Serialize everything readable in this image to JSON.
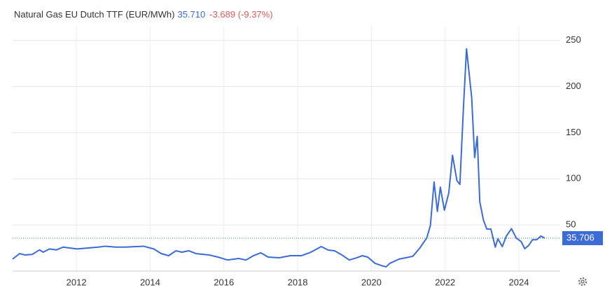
{
  "chart_data": {
    "type": "line",
    "title": "Natural Gas EU Dutch TTF (EUR/MWh)",
    "price": "35.710",
    "change": "-3.689 (-9.37%)",
    "series": [
      {
        "name": "Natural Gas EU Dutch TTF",
        "color": "#3b6bd6",
        "x": [
          2010.27,
          2010.46,
          2010.6,
          2010.8,
          2011.0,
          2011.1,
          2011.27,
          2011.46,
          2011.64,
          2011.83,
          2012.02,
          2012.3,
          2012.6,
          2012.78,
          2013.06,
          2013.34,
          2013.63,
          2013.82,
          2014.1,
          2014.3,
          2014.5,
          2014.7,
          2014.86,
          2015.05,
          2015.24,
          2015.6,
          2015.9,
          2016.1,
          2016.4,
          2016.6,
          2016.8,
          2017.0,
          2017.2,
          2017.5,
          2017.8,
          2018.1,
          2018.36,
          2018.64,
          2018.83,
          2019.0,
          2019.2,
          2019.4,
          2019.6,
          2019.75,
          2019.9,
          2020.1,
          2020.27,
          2020.4,
          2020.5,
          2020.75,
          2020.93,
          2021.12,
          2021.3,
          2021.5,
          2021.6,
          2021.7,
          2021.79,
          2021.87,
          2021.98,
          2022.1,
          2022.2,
          2022.32,
          2022.4,
          2022.5,
          2022.58,
          2022.72,
          2022.8,
          2022.87,
          2022.94,
          2023.04,
          2023.13,
          2023.24,
          2023.36,
          2023.43,
          2023.55,
          2023.66,
          2023.8,
          2023.93,
          2024.06,
          2024.16,
          2024.27,
          2024.37,
          2024.48,
          2024.6,
          2024.7
        ],
        "values": [
          13,
          19,
          17.5,
          18,
          23,
          20.5,
          24,
          23,
          26,
          25,
          24,
          25,
          26,
          27,
          26,
          26,
          26.6,
          27,
          24,
          19,
          16.7,
          22,
          20.5,
          22,
          19,
          17.5,
          14.5,
          12,
          13.7,
          12,
          16.7,
          19.8,
          15.2,
          14.4,
          16.7,
          16.7,
          20.5,
          26.6,
          22.8,
          22,
          17.5,
          12,
          14.4,
          16.7,
          15.2,
          8.4,
          6,
          4.6,
          8.4,
          13,
          14.4,
          16,
          24.3,
          35.7,
          49.4,
          96.6,
          64.6,
          91,
          66,
          85,
          125.5,
          98,
          94,
          180,
          241,
          188,
          123,
          146,
          75,
          55,
          45.6,
          45.6,
          26,
          35,
          26.6,
          38,
          46,
          35.7,
          32,
          24.3,
          28,
          34,
          34,
          38,
          35.706
        ]
      }
    ],
    "xlim": [
      2010.27,
      2025.12
    ],
    "xticks": [
      2012,
      2014,
      2016,
      2018,
      2020,
      2022,
      2024
    ],
    "ylim": [
      0,
      265
    ],
    "yticks": [
      50,
      100,
      150,
      200,
      250
    ],
    "grid": true
  }
}
